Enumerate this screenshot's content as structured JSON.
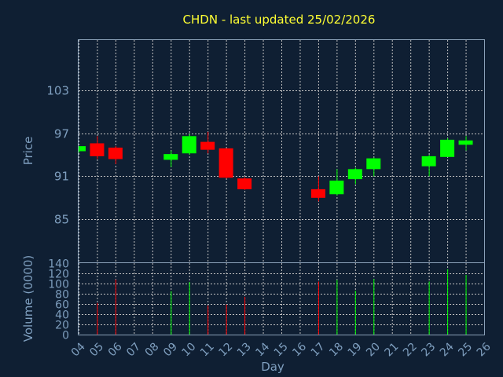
{
  "chart_data": {
    "type": "candlestick",
    "title": "CHDN - last updated 25/02/2026",
    "xlabel": "Day",
    "ylabel": "Price",
    "volume_label": "Volume (0000)",
    "ylim": [
      79,
      110
    ],
    "yticks": [
      85,
      91,
      97,
      103
    ],
    "volume_ylim": [
      0,
      140
    ],
    "volume_ticks": [
      0,
      20,
      40,
      60,
      80,
      100,
      120,
      140
    ],
    "x_ticks": [
      "04",
      "05",
      "06",
      "07",
      "08",
      "09",
      "10",
      "11",
      "12",
      "13",
      "14",
      "15",
      "16",
      "17",
      "18",
      "19",
      "20",
      "21",
      "22",
      "23",
      "24",
      "25",
      "26"
    ],
    "grid": true,
    "colors": {
      "up": "#00ff00",
      "down": "#ff0000",
      "background": "#0f1f33",
      "title": "#ffff33",
      "text": "#7f9fbf"
    },
    "candles": [
      {
        "day": "04",
        "open": 94.5,
        "high": 95.2,
        "low": 94.3,
        "close": 95.2,
        "volume": 0
      },
      {
        "day": "05",
        "open": 95.6,
        "high": 96.6,
        "low": 93.4,
        "close": 93.8,
        "volume": 62
      },
      {
        "day": "06",
        "open": 95.0,
        "high": 95.2,
        "low": 92.7,
        "close": 93.4,
        "volume": 108
      },
      {
        "day": "09",
        "open": 93.3,
        "high": 94.6,
        "low": 92.3,
        "close": 94.1,
        "volume": 85
      },
      {
        "day": "10",
        "open": 94.2,
        "high": 96.9,
        "low": 94.0,
        "close": 96.6,
        "volume": 103
      },
      {
        "day": "11",
        "open": 95.8,
        "high": 97.2,
        "low": 94.2,
        "close": 94.7,
        "volume": 57
      },
      {
        "day": "12",
        "open": 94.9,
        "high": 94.9,
        "low": 90.7,
        "close": 90.8,
        "volume": 59
      },
      {
        "day": "13",
        "open": 90.7,
        "high": 90.9,
        "low": 89.1,
        "close": 89.2,
        "volume": 74
      },
      {
        "day": "17",
        "open": 89.2,
        "high": 91.0,
        "low": 87.5,
        "close": 88.0,
        "volume": 104
      },
      {
        "day": "18",
        "open": 88.5,
        "high": 92.0,
        "low": 88.3,
        "close": 90.4,
        "volume": 107
      },
      {
        "day": "19",
        "open": 90.6,
        "high": 92.2,
        "low": 89.9,
        "close": 92.0,
        "volume": 86
      },
      {
        "day": "20",
        "open": 92.0,
        "high": 93.6,
        "low": 91.0,
        "close": 93.5,
        "volume": 109
      },
      {
        "day": "23",
        "open": 92.4,
        "high": 94.0,
        "low": 91.0,
        "close": 93.8,
        "volume": 104
      },
      {
        "day": "24",
        "open": 93.7,
        "high": 96.3,
        "low": 93.7,
        "close": 96.1,
        "volume": 128
      },
      {
        "day": "25",
        "open": 95.4,
        "high": 96.6,
        "low": 94.6,
        "close": 96.0,
        "volume": 117
      }
    ]
  }
}
